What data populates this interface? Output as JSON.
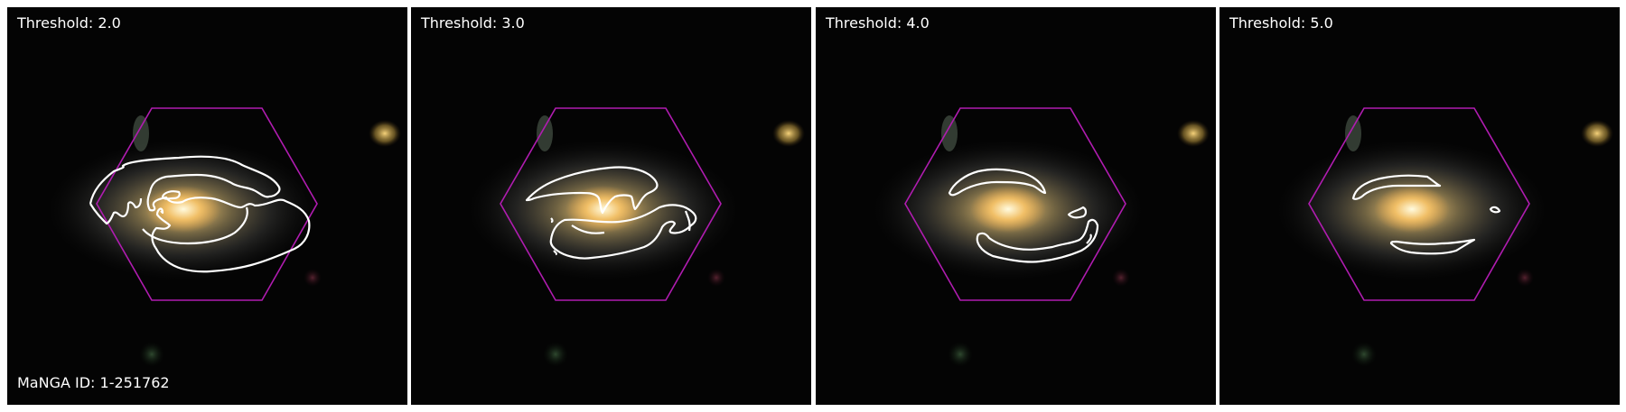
{
  "panels": [
    {
      "threshold_label": "Threshold: 2.0"
    },
    {
      "threshold_label": "Threshold: 3.0"
    },
    {
      "threshold_label": "Threshold: 4.0"
    },
    {
      "threshold_label": "Threshold: 5.0"
    }
  ],
  "manga_id_label": "MaNGA ID: 1-251762",
  "colors": {
    "background": "#040404",
    "contour": "#ffffff",
    "hexagon": "#b01cb0",
    "galaxy_core": "#ffd98a",
    "galaxy_halo": "#8a7a5a"
  }
}
